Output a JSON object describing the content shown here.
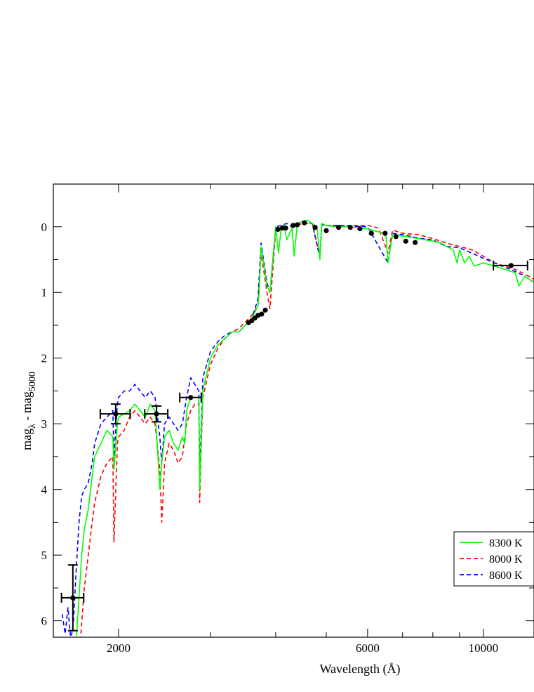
{
  "chart_data": {
    "type": "line",
    "title": "",
    "xlabel": "Wavelength (Å)",
    "ylabel_main": "mag",
    "ylabel_sub1": "λ",
    "ylabel_mid": " - mag",
    "ylabel_sub2": "5000",
    "x_scale": "log",
    "xlim": [
      1500,
      12500
    ],
    "ylim": [
      6.25,
      -0.65
    ],
    "y_inverted": true,
    "x_ticks": [
      {
        "value": 2000,
        "label": "2000"
      },
      {
        "value": 6000,
        "label": "6000"
      },
      {
        "value": 10000,
        "label": "10000"
      }
    ],
    "x_minor_ticks": [
      3000,
      4000,
      5000,
      7000,
      8000,
      9000
    ],
    "y_ticks": [
      {
        "value": 0,
        "label": "0"
      },
      {
        "value": 1,
        "label": "1"
      },
      {
        "value": 2,
        "label": "2"
      },
      {
        "value": 3,
        "label": "3"
      },
      {
        "value": 4,
        "label": "4"
      },
      {
        "value": 5,
        "label": "5"
      },
      {
        "value": 6,
        "label": "6"
      }
    ],
    "y_minor_ticks": [
      0.5,
      1.5,
      2.5,
      3.5,
      4.5,
      5.5
    ],
    "grid": false,
    "legend_position": "bottom-right",
    "series": [
      {
        "name": "8300 K",
        "color": "#00ff00",
        "dash": "solid",
        "x": [
          1660,
          1700,
          1720,
          1750,
          1780,
          1800,
          1850,
          1900,
          1950,
          1960,
          1990,
          2000,
          2050,
          2100,
          2150,
          2200,
          2250,
          2300,
          2350,
          2380,
          2400,
          2420,
          2450,
          2500,
          2550,
          2600,
          2650,
          2680,
          2700,
          2750,
          2800,
          2850,
          2860,
          2900,
          3000,
          3100,
          3200,
          3300,
          3400,
          3500,
          3600,
          3650,
          3700,
          3720,
          3750,
          3800,
          3850,
          3900,
          4000,
          4050,
          4100,
          4150,
          4200,
          4300,
          4340,
          4400,
          4500,
          4600,
          4700,
          4800,
          4861,
          4900,
          5000,
          5200,
          5500,
          6000,
          6300,
          6500,
          6563,
          6700,
          7000,
          7500,
          8000,
          8300,
          8500,
          8750,
          8900,
          9000,
          9200,
          9400,
          9600,
          10000,
          10500,
          11000,
          11500,
          11700,
          12000,
          12500
        ],
        "y": [
          6.3,
          5.0,
          4.6,
          4.3,
          3.8,
          3.5,
          3.3,
          3.1,
          3.2,
          3.7,
          3.0,
          2.9,
          2.85,
          2.8,
          2.7,
          2.8,
          2.9,
          2.7,
          2.8,
          3.5,
          4.0,
          3.6,
          3.2,
          3.1,
          3.3,
          3.4,
          3.2,
          3.3,
          2.8,
          2.6,
          2.6,
          2.6,
          4.0,
          2.5,
          2.0,
          1.8,
          1.7,
          1.6,
          1.6,
          1.5,
          1.4,
          1.3,
          1.2,
          1.0,
          0.3,
          0.6,
          0.9,
          1.0,
          0.0,
          0.4,
          0.0,
          -0.03,
          0.2,
          0.02,
          0.45,
          -0.05,
          -0.08,
          -0.1,
          -0.05,
          0.0,
          0.5,
          -0.05,
          -0.02,
          0.0,
          0.0,
          0.03,
          0.08,
          0.1,
          0.55,
          0.12,
          0.14,
          0.18,
          0.22,
          0.25,
          0.3,
          0.35,
          0.55,
          0.35,
          0.55,
          0.45,
          0.6,
          0.55,
          0.6,
          0.65,
          0.7,
          0.9,
          0.75,
          0.85
        ]
      },
      {
        "name": "8000 K",
        "color": "#ff0000",
        "dash": "dashed",
        "x": [
          1690,
          1720,
          1750,
          1780,
          1800,
          1850,
          1900,
          1950,
          1960,
          1990,
          2000,
          2050,
          2100,
          2150,
          2200,
          2250,
          2300,
          2350,
          2400,
          2420,
          2450,
          2500,
          2550,
          2600,
          2650,
          2700,
          2750,
          2800,
          2850,
          2860,
          2900,
          3000,
          3100,
          3200,
          3300,
          3400,
          3500,
          3600,
          3700,
          3750,
          3800,
          3850,
          3900,
          4000,
          4100,
          4200,
          4300,
          4500,
          4700,
          4861,
          4900,
          5000,
          5500,
          6000,
          6300,
          6563,
          6700,
          7000,
          7500,
          8000,
          8500,
          9000,
          9500,
          10000,
          10500,
          11000,
          11500,
          12000,
          12500
        ],
        "y": [
          6.3,
          5.5,
          5.0,
          4.5,
          4.2,
          3.8,
          3.6,
          3.5,
          4.8,
          3.3,
          3.2,
          3.1,
          2.9,
          2.8,
          2.9,
          3.0,
          2.9,
          3.0,
          3.7,
          4.5,
          3.6,
          3.3,
          3.4,
          3.6,
          3.5,
          3.0,
          2.8,
          2.7,
          2.7,
          4.2,
          2.6,
          2.1,
          1.85,
          1.7,
          1.6,
          1.55,
          1.45,
          1.35,
          1.2,
          0.4,
          0.7,
          1.0,
          1.25,
          0.05,
          0.05,
          0.0,
          0.0,
          -0.05,
          -0.05,
          0.45,
          -0.03,
          -0.02,
          -0.02,
          -0.02,
          0.02,
          0.4,
          0.05,
          0.1,
          0.12,
          0.18,
          0.25,
          0.3,
          0.35,
          0.45,
          0.55,
          0.6,
          0.65,
          0.72,
          0.8
        ]
      },
      {
        "name": "8600 K",
        "color": "#0000ff",
        "dash": "dashed",
        "x": [
          1560,
          1580,
          1600,
          1620,
          1640,
          1660,
          1680,
          1700,
          1720,
          1750,
          1780,
          1800,
          1850,
          1900,
          1950,
          1960,
          1990,
          2000,
          2050,
          2100,
          2150,
          2200,
          2250,
          2300,
          2350,
          2400,
          2420,
          2450,
          2500,
          2550,
          2600,
          2650,
          2700,
          2750,
          2800,
          2850,
          2860,
          2900,
          3000,
          3100,
          3200,
          3300,
          3400,
          3500,
          3600,
          3700,
          3750,
          3800,
          3850,
          3900,
          4000,
          4100,
          4200,
          4300,
          4500,
          4700,
          4861,
          4900,
          5000,
          5500,
          6000,
          6563,
          6700,
          7000,
          7500,
          8000,
          8500,
          9000,
          9500,
          10000,
          10500,
          11000,
          11500,
          12000,
          12500
        ],
        "y": [
          5.9,
          6.2,
          5.8,
          6.3,
          6.0,
          5.2,
          4.5,
          4.1,
          4.0,
          3.9,
          3.6,
          3.3,
          3.0,
          2.9,
          2.8,
          3.5,
          2.7,
          2.6,
          2.5,
          2.5,
          2.4,
          2.5,
          2.6,
          2.5,
          2.6,
          3.2,
          3.6,
          3.0,
          2.9,
          3.0,
          3.1,
          3.0,
          2.6,
          2.3,
          2.4,
          2.5,
          3.8,
          2.3,
          1.9,
          1.75,
          1.65,
          1.6,
          1.6,
          1.5,
          1.4,
          1.1,
          0.25,
          0.55,
          0.85,
          1.0,
          0.0,
          -0.02,
          -0.05,
          0.0,
          -0.08,
          -0.05,
          0.48,
          -0.03,
          -0.02,
          -0.01,
          0.0,
          0.55,
          0.1,
          0.12,
          0.17,
          0.2,
          0.3,
          0.32,
          0.4,
          0.48,
          0.55,
          0.62,
          0.68,
          0.75,
          0.85
        ]
      }
    ],
    "observations": {
      "name": "observed",
      "color": "#000000",
      "points": [
        {
          "x": 1635,
          "y": 5.65,
          "xerr": 80,
          "yerr": 0.5
        },
        {
          "x": 1975,
          "y": 2.85,
          "xerr": 130,
          "yerr": 0.15
        },
        {
          "x": 2365,
          "y": 2.85,
          "xerr": 120,
          "yerr": 0.12
        },
        {
          "x": 2750,
          "y": 2.6,
          "xerr": 130,
          "yerr": 0.0
        },
        {
          "x": 3550,
          "y": 1.46,
          "xerr": 0,
          "yerr": 0
        },
        {
          "x": 3600,
          "y": 1.43,
          "xerr": 0,
          "yerr": 0
        },
        {
          "x": 3650,
          "y": 1.39,
          "xerr": 0,
          "yerr": 0
        },
        {
          "x": 3700,
          "y": 1.35,
          "xerr": 0,
          "yerr": 0
        },
        {
          "x": 3760,
          "y": 1.33,
          "xerr": 0,
          "yerr": 0
        },
        {
          "x": 3820,
          "y": 1.27,
          "xerr": 0,
          "yerr": 0
        },
        {
          "x": 4040,
          "y": 0.04,
          "xerr": 0,
          "yerr": 0
        },
        {
          "x": 4120,
          "y": 0.02,
          "xerr": 0,
          "yerr": 0
        },
        {
          "x": 4180,
          "y": 0.02,
          "xerr": 0,
          "yerr": 0
        },
        {
          "x": 4320,
          "y": -0.02,
          "xerr": 0,
          "yerr": 0
        },
        {
          "x": 4400,
          "y": -0.03,
          "xerr": 0,
          "yerr": 0
        },
        {
          "x": 4540,
          "y": -0.06,
          "xerr": 0,
          "yerr": 0
        },
        {
          "x": 4760,
          "y": 0.01,
          "xerr": 0,
          "yerr": 0
        },
        {
          "x": 5000,
          "y": 0.06,
          "xerr": 0,
          "yerr": 0
        },
        {
          "x": 5280,
          "y": 0.01,
          "xerr": 0,
          "yerr": 0
        },
        {
          "x": 5560,
          "y": 0.01,
          "xerr": 0,
          "yerr": 0
        },
        {
          "x": 5800,
          "y": 0.03,
          "xerr": 0,
          "yerr": 0
        },
        {
          "x": 6100,
          "y": 0.1,
          "xerr": 0,
          "yerr": 0
        },
        {
          "x": 6480,
          "y": 0.1,
          "xerr": 0,
          "yerr": 0
        },
        {
          "x": 6800,
          "y": 0.15,
          "xerr": 0,
          "yerr": 0
        },
        {
          "x": 7100,
          "y": 0.22,
          "xerr": 0,
          "yerr": 0
        },
        {
          "x": 7400,
          "y": 0.24,
          "xerr": 0,
          "yerr": 0
        },
        {
          "x": 11300,
          "y": 0.59,
          "xerr": 850,
          "yerr": 0
        }
      ]
    }
  }
}
